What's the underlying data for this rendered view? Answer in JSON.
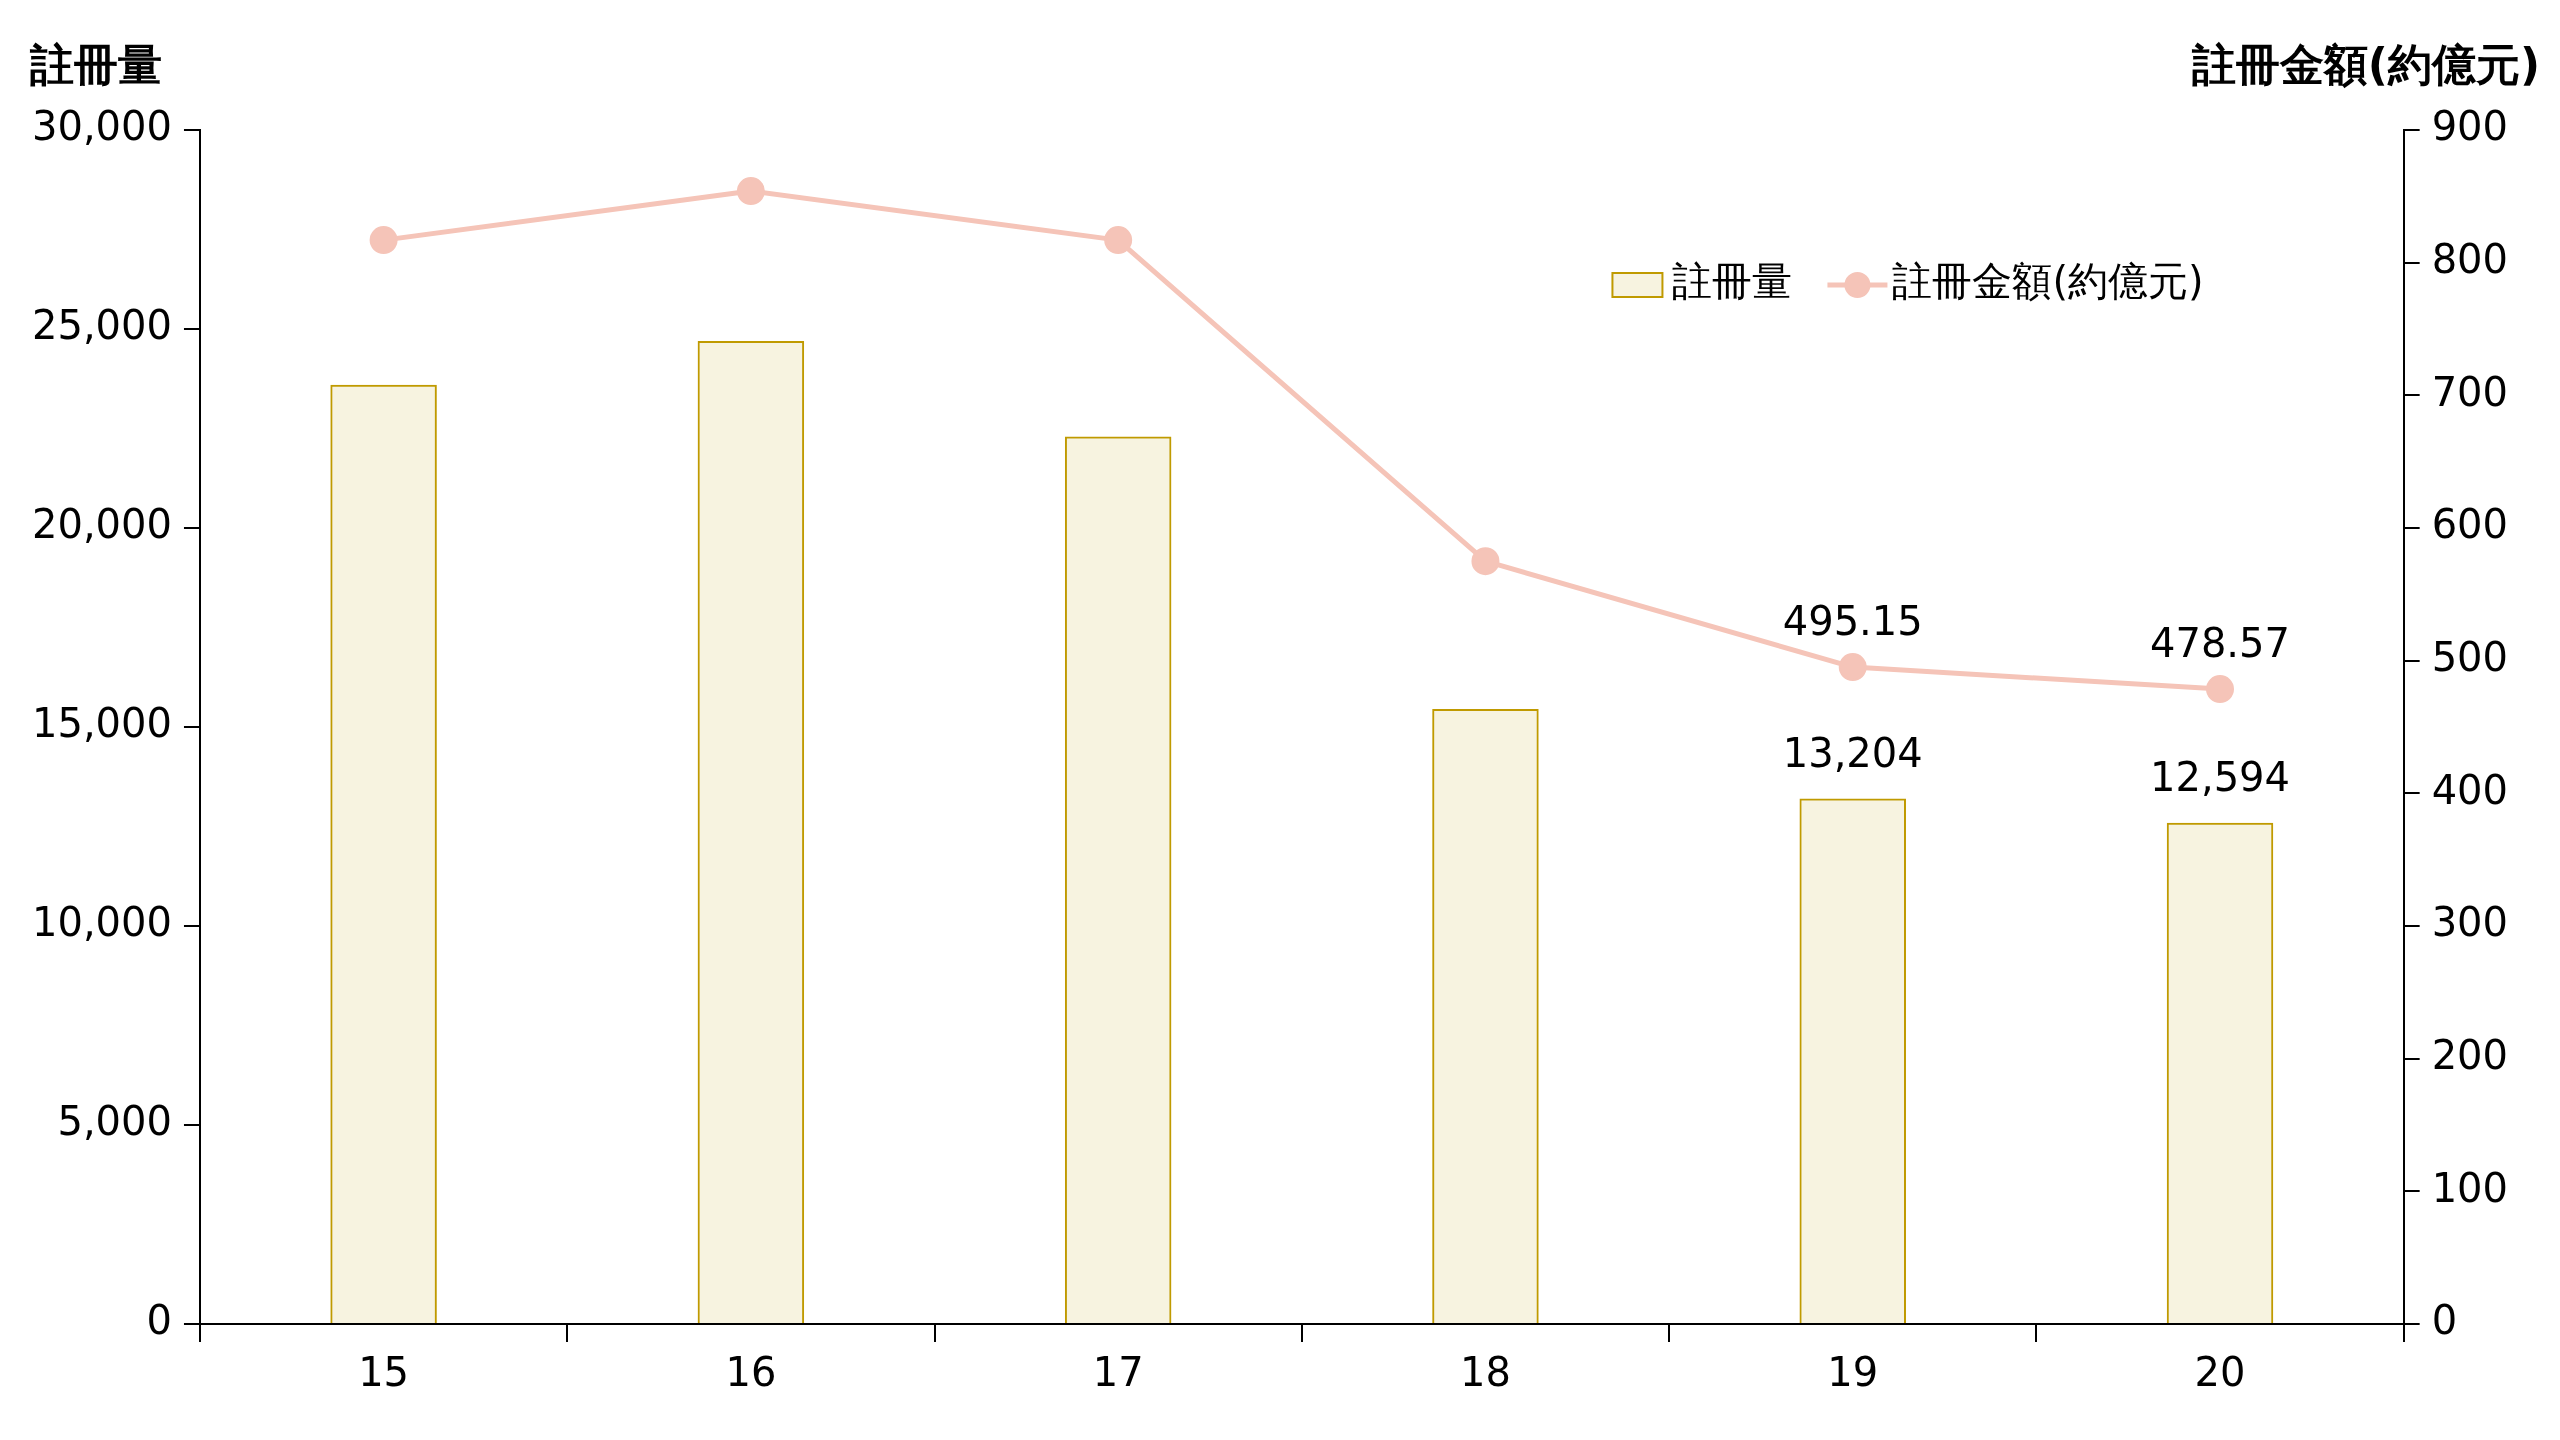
{
  "chart_data": {
    "type": "bar",
    "ylabel": "註冊量",
    "y2label": "註冊金額(約億元)",
    "categories": [
      "15",
      "16",
      "17",
      "18",
      "19",
      "20"
    ],
    "series": [
      {
        "name": "註冊量",
        "color": "#c09a00",
        "values": [
          23600,
          24700,
          22300,
          15450,
          13204,
          12594
        ],
        "value_labels": [
          null,
          null,
          null,
          null,
          "13,204",
          "12,594"
        ]
      },
      {
        "name": "註冊金額(約億元)",
        "type": "line",
        "axis": "y2",
        "color": "#f5c4b8",
        "values": [
          817,
          854,
          817,
          575,
          495.15,
          478.57
        ],
        "value_labels": [
          null,
          null,
          null,
          null,
          "495.15",
          "478.57"
        ]
      }
    ],
    "ylim": [
      0,
      30000
    ],
    "yticks": [
      {
        "value": 0,
        "label": "0"
      },
      {
        "value": 5000,
        "label": "5,000"
      },
      {
        "value": 10000,
        "label": "10,000"
      },
      {
        "value": 15000,
        "label": "15,000"
      },
      {
        "value": 20000,
        "label": "20,000"
      },
      {
        "value": 25000,
        "label": "25,000"
      },
      {
        "value": 30000,
        "label": "30,000"
      }
    ],
    "y2lim": [
      0,
      900
    ],
    "y2ticks": [
      0,
      100,
      200,
      300,
      400,
      500,
      600,
      700,
      800,
      900
    ],
    "legend": "top right",
    "marker": "circle",
    "line_style": "solid"
  }
}
